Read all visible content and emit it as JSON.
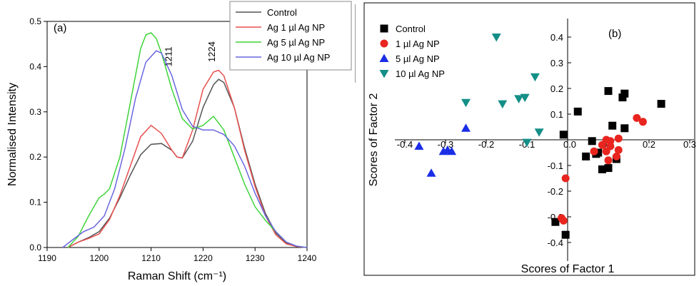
{
  "chart_data": [
    {
      "type": "line",
      "panel_label": "(a)",
      "xlabel": "Raman Shift (cm⁻¹)",
      "ylabel": "Normalised Intensity",
      "xlim": [
        1190,
        1240
      ],
      "ylim": [
        0,
        0.5
      ],
      "x_ticks": [
        "1190",
        "1200",
        "1210",
        "1220",
        "1230",
        "1240"
      ],
      "y_ticks": [
        "0.0",
        "0.1",
        "0.2",
        "0.3",
        "0.4",
        "0.5"
      ],
      "legend_position": "top-right",
      "annotations": [
        {
          "text": "1211",
          "x": 1214,
          "y": 0.4,
          "rotated": true
        },
        {
          "text": "1224",
          "x": 1222.3,
          "y": 0.41,
          "rotated": true
        }
      ],
      "series": [
        {
          "name": "Control",
          "color": "#555555",
          "x": [
            1194,
            1196,
            1198,
            1200,
            1202,
            1204,
            1206,
            1208,
            1210,
            1212,
            1214,
            1215,
            1216,
            1218,
            1220,
            1222,
            1223,
            1224,
            1226,
            1228,
            1230,
            1232,
            1234,
            1236,
            1238,
            1240
          ],
          "y": [
            0.0,
            0.012,
            0.022,
            0.035,
            0.065,
            0.11,
            0.16,
            0.205,
            0.228,
            0.23,
            0.215,
            0.2,
            0.198,
            0.235,
            0.31,
            0.36,
            0.372,
            0.365,
            0.31,
            0.22,
            0.14,
            0.075,
            0.032,
            0.01,
            0.002,
            0.0
          ]
        },
        {
          "name": "Ag 1 µl Ag NP",
          "color": "#e8514f",
          "x": [
            1194,
            1196,
            1198,
            1200,
            1202,
            1204,
            1206,
            1208,
            1210,
            1212,
            1214,
            1215,
            1216,
            1218,
            1220,
            1222,
            1223,
            1224,
            1226,
            1228,
            1230,
            1232,
            1234,
            1236,
            1238,
            1240
          ],
          "y": [
            0.0,
            0.012,
            0.02,
            0.03,
            0.062,
            0.115,
            0.18,
            0.245,
            0.27,
            0.252,
            0.215,
            0.2,
            0.198,
            0.26,
            0.35,
            0.388,
            0.392,
            0.38,
            0.31,
            0.215,
            0.135,
            0.07,
            0.028,
            0.008,
            0.002,
            0.0
          ]
        },
        {
          "name": "Ag 5 µl Ag NP",
          "color": "#3fd43a",
          "x": [
            1194,
            1196,
            1198,
            1200,
            1201,
            1202,
            1204,
            1206,
            1208,
            1209,
            1210,
            1211,
            1212,
            1214,
            1216,
            1218,
            1220,
            1222,
            1224,
            1226,
            1228,
            1230,
            1232,
            1234,
            1236,
            1238,
            1240
          ],
          "y": [
            0.0,
            0.025,
            0.07,
            0.11,
            0.118,
            0.13,
            0.2,
            0.32,
            0.44,
            0.47,
            0.475,
            0.462,
            0.43,
            0.35,
            0.285,
            0.262,
            0.27,
            0.29,
            0.26,
            0.2,
            0.14,
            0.09,
            0.06,
            0.035,
            0.012,
            0.003,
            0.0
          ]
        },
        {
          "name": "Ag 10 µl Ag NP",
          "color": "#6a66e0",
          "x": [
            1193,
            1195,
            1197,
            1199,
            1201,
            1203,
            1205,
            1207,
            1209,
            1211,
            1212,
            1214,
            1216,
            1218,
            1220,
            1222,
            1224,
            1226,
            1228,
            1230,
            1232,
            1234,
            1236,
            1238,
            1240
          ],
          "y": [
            0.0,
            0.018,
            0.035,
            0.045,
            0.07,
            0.13,
            0.22,
            0.33,
            0.41,
            0.435,
            0.43,
            0.38,
            0.305,
            0.268,
            0.26,
            0.26,
            0.25,
            0.225,
            0.18,
            0.12,
            0.07,
            0.035,
            0.012,
            0.003,
            0.0
          ]
        }
      ]
    },
    {
      "type": "scatter",
      "panel_label": "(b)",
      "xlabel": "Scores of Factor 1",
      "ylabel": "Scores of Factor 2",
      "xlim": [
        -0.4,
        0.3
      ],
      "ylim": [
        -0.45,
        0.45
      ],
      "x_ticks": [
        "-0.4",
        "-0.3",
        "-0.2",
        "-0.1",
        "0.0",
        "0.1",
        "0.2",
        "0.3"
      ],
      "y_ticks": [
        "0.4",
        "0.3",
        "0.2",
        "0.1",
        "0.0",
        "-0.1",
        "-0.2",
        "-0.3",
        "-0.4"
      ],
      "legend_position": "top-left",
      "series": [
        {
          "name": "Control",
          "marker": "square",
          "color": "#000000",
          "points": [
            [
              -0.01,
              0.02
            ],
            [
              0.025,
              0.11
            ],
            [
              0.1,
              0.19
            ],
            [
              0.14,
              0.18
            ],
            [
              0.135,
              0.165
            ],
            [
              0.23,
              0.14
            ],
            [
              0.11,
              0.055
            ],
            [
              0.14,
              0.045
            ],
            [
              0.06,
              -0.005
            ],
            [
              0.075,
              -0.05
            ],
            [
              0.045,
              -0.065
            ],
            [
              0.07,
              -0.055
            ],
            [
              0.12,
              -0.075
            ],
            [
              0.1,
              -0.11
            ],
            [
              0.085,
              -0.115
            ],
            [
              -0.03,
              -0.32
            ],
            [
              -0.005,
              -0.37
            ]
          ]
        },
        {
          "name": "1 µl Ag NP",
          "color": "#e8251e",
          "marker": "circle",
          "points": [
            [
              0.17,
              0.085
            ],
            [
              0.185,
              0.07
            ],
            [
              0.095,
              0.0
            ],
            [
              0.125,
              0.005
            ],
            [
              0.105,
              -0.005
            ],
            [
              0.085,
              -0.02
            ],
            [
              0.105,
              -0.025
            ],
            [
              0.095,
              -0.045
            ],
            [
              0.125,
              -0.04
            ],
            [
              0.065,
              -0.045
            ],
            [
              0.12,
              -0.065
            ],
            [
              0.1,
              -0.08
            ],
            [
              -0.005,
              -0.15
            ],
            [
              -0.015,
              -0.305
            ],
            [
              -0.01,
              -0.315
            ]
          ]
        },
        {
          "name": "5 µl Ag NP",
          "color": "#1a2ee6",
          "marker": "triangle-up",
          "points": [
            [
              -0.25,
              0.045
            ],
            [
              -0.295,
              -0.04
            ],
            [
              -0.285,
              -0.045
            ],
            [
              -0.305,
              -0.045
            ],
            [
              -0.365,
              -0.025
            ],
            [
              -0.335,
              -0.13
            ]
          ]
        },
        {
          "name": "10 µl Ag NP",
          "color": "#148f88",
          "marker": "triangle-down",
          "points": [
            [
              -0.175,
              0.4
            ],
            [
              -0.08,
              0.245
            ],
            [
              -0.105,
              0.165
            ],
            [
              -0.12,
              0.16
            ],
            [
              -0.16,
              0.14
            ],
            [
              -0.25,
              0.145
            ],
            [
              -0.07,
              0.03
            ],
            [
              -0.1,
              -0.01
            ]
          ]
        }
      ]
    }
  ]
}
